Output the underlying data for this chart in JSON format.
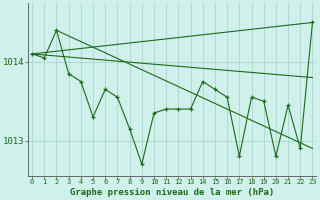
{
  "title": "Graphe pression niveau de la mer (hPa)",
  "background_color": "#cff0eb",
  "plot_bg_color": "#cff0eb",
  "grid_color": "#aad8d0",
  "line_color": "#1a6b1a",
  "marker_color": "#1a6b1a",
  "x_labels": [
    "0",
    "1",
    "2",
    "3",
    "4",
    "5",
    "6",
    "7",
    "8",
    "9",
    "10",
    "11",
    "12",
    "13",
    "14",
    "15",
    "16",
    "17",
    "18",
    "19",
    "20",
    "21",
    "22",
    "23"
  ],
  "yticks": [
    1013,
    1014
  ],
  "ylim": [
    1012.55,
    1014.75
  ],
  "xlim": [
    -0.3,
    23.3
  ],
  "main_x": [
    0,
    1,
    2,
    3,
    4,
    5,
    6,
    7,
    8,
    9,
    10,
    11,
    12,
    13,
    14,
    15,
    16,
    17,
    18,
    19,
    20,
    21,
    22,
    23
  ],
  "main_y": [
    1014.1,
    1014.05,
    1014.4,
    1013.85,
    1013.75,
    1013.3,
    1013.65,
    1013.55,
    1013.15,
    1012.7,
    1013.35,
    1013.4,
    1013.4,
    1013.4,
    1013.75,
    1013.65,
    1013.55,
    1012.8,
    1013.55,
    1013.5,
    1012.8,
    1013.45,
    1012.9,
    1014.5
  ],
  "trend1_x": [
    0,
    23
  ],
  "trend1_y": [
    1014.1,
    1014.5
  ],
  "trend2_x": [
    0,
    23
  ],
  "trend2_y": [
    1014.1,
    1013.8
  ],
  "trend3_x": [
    2,
    23
  ],
  "trend3_y": [
    1014.4,
    1012.9
  ]
}
